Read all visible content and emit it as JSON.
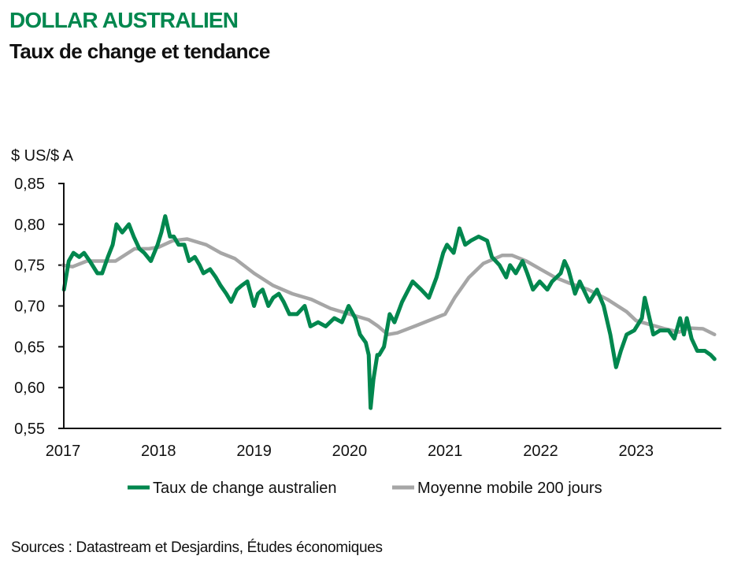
{
  "title": "DOLLAR AUSTRALIEN",
  "subtitle": "Taux de change et tendance",
  "source": "Sources : Datastream et Desjardins, Études économiques",
  "colors": {
    "exchange": "#00874e",
    "ma": "#a6a6a6",
    "title": "#00874e"
  },
  "chart_data": {
    "type": "line",
    "ylabel": "$ US/$ A",
    "xlabel": "",
    "ylim": [
      0.55,
      0.85
    ],
    "xlim": [
      2017,
      2023.9
    ],
    "y_ticks": [
      "0,55",
      "0,60",
      "0,65",
      "0,70",
      "0,75",
      "0,80",
      "0,85"
    ],
    "y_tick_values": [
      0.55,
      0.6,
      0.65,
      0.7,
      0.75,
      0.8,
      0.85
    ],
    "x_ticks": [
      "2017",
      "2018",
      "2019",
      "2020",
      "2021",
      "2022",
      "2023"
    ],
    "x_tick_values": [
      2017,
      2018,
      2019,
      2020,
      2021,
      2022,
      2023
    ],
    "grid": false,
    "legend_position": "bottom",
    "series": [
      {
        "name": "Taux de change australien",
        "color": "#00874e",
        "x": [
          2017.01,
          2017.06,
          2017.11,
          2017.17,
          2017.22,
          2017.28,
          2017.36,
          2017.41,
          2017.47,
          2017.52,
          2017.56,
          2017.62,
          2017.69,
          2017.74,
          2017.8,
          2017.85,
          2017.92,
          2017.99,
          2018.03,
          2018.07,
          2018.12,
          2018.16,
          2018.21,
          2018.27,
          2018.32,
          2018.38,
          2018.43,
          2018.47,
          2018.54,
          2018.6,
          2018.65,
          2018.71,
          2018.76,
          2018.82,
          2018.87,
          2018.93,
          2019.0,
          2019.04,
          2019.09,
          2019.15,
          2019.2,
          2019.26,
          2019.31,
          2019.37,
          2019.45,
          2019.53,
          2019.59,
          2019.67,
          2019.75,
          2019.84,
          2019.92,
          2019.99,
          2020.06,
          2020.11,
          2020.17,
          2020.2,
          2020.22,
          2020.25,
          2020.29,
          2020.31,
          2020.36,
          2020.42,
          2020.47,
          2020.55,
          2020.66,
          2020.75,
          2020.83,
          2020.91,
          2020.98,
          2021.02,
          2021.09,
          2021.15,
          2021.21,
          2021.27,
          2021.35,
          2021.44,
          2021.49,
          2021.57,
          2021.64,
          2021.68,
          2021.74,
          2021.81,
          2021.86,
          2021.92,
          2021.99,
          2022.07,
          2022.12,
          2022.21,
          2022.25,
          2022.29,
          2022.36,
          2022.41,
          2022.51,
          2022.59,
          2022.66,
          2022.73,
          2022.79,
          2022.84,
          2022.9,
          2022.98,
          2023.06,
          2023.09,
          2023.13,
          2023.18,
          2023.25,
          2023.34,
          2023.4,
          2023.46,
          2023.5,
          2023.53,
          2023.58,
          2023.64,
          2023.72,
          2023.78,
          2023.82
        ],
        "values": [
          0.72,
          0.755,
          0.765,
          0.76,
          0.765,
          0.755,
          0.74,
          0.74,
          0.76,
          0.775,
          0.8,
          0.79,
          0.8,
          0.785,
          0.77,
          0.765,
          0.755,
          0.775,
          0.79,
          0.81,
          0.785,
          0.785,
          0.775,
          0.775,
          0.755,
          0.76,
          0.75,
          0.74,
          0.745,
          0.735,
          0.725,
          0.715,
          0.705,
          0.72,
          0.725,
          0.73,
          0.7,
          0.715,
          0.72,
          0.7,
          0.71,
          0.715,
          0.705,
          0.69,
          0.69,
          0.7,
          0.675,
          0.68,
          0.675,
          0.685,
          0.68,
          0.7,
          0.685,
          0.665,
          0.655,
          0.64,
          0.575,
          0.61,
          0.64,
          0.64,
          0.65,
          0.69,
          0.68,
          0.705,
          0.73,
          0.72,
          0.71,
          0.735,
          0.765,
          0.775,
          0.765,
          0.795,
          0.775,
          0.78,
          0.785,
          0.78,
          0.76,
          0.75,
          0.735,
          0.75,
          0.74,
          0.755,
          0.74,
          0.72,
          0.73,
          0.72,
          0.73,
          0.74,
          0.755,
          0.745,
          0.715,
          0.73,
          0.705,
          0.72,
          0.7,
          0.665,
          0.625,
          0.645,
          0.665,
          0.67,
          0.685,
          0.71,
          0.69,
          0.665,
          0.67,
          0.67,
          0.66,
          0.685,
          0.665,
          0.685,
          0.66,
          0.645,
          0.645,
          0.64,
          0.635
        ]
      },
      {
        "name": "Moyenne mobile 200 jours",
        "color": "#a6a6a6",
        "x": [
          2017.0,
          2017.1,
          2017.25,
          2017.4,
          2017.55,
          2017.75,
          2017.9,
          2018.0,
          2018.15,
          2018.3,
          2018.5,
          2018.65,
          2018.8,
          2019.0,
          2019.2,
          2019.4,
          2019.6,
          2019.8,
          2020.0,
          2020.2,
          2020.3,
          2020.4,
          2020.5,
          2020.7,
          2020.85,
          2021.0,
          2021.1,
          2021.25,
          2021.4,
          2021.6,
          2021.7,
          2021.85,
          2022.0,
          2022.15,
          2022.3,
          2022.5,
          2022.7,
          2022.9,
          2023.0,
          2023.15,
          2023.3,
          2023.45,
          2023.55,
          2023.7,
          2023.82
        ],
        "values": [
          0.75,
          0.748,
          0.755,
          0.755,
          0.755,
          0.77,
          0.77,
          0.772,
          0.78,
          0.782,
          0.775,
          0.765,
          0.758,
          0.74,
          0.725,
          0.715,
          0.708,
          0.697,
          0.69,
          0.683,
          0.675,
          0.665,
          0.667,
          0.676,
          0.683,
          0.69,
          0.71,
          0.735,
          0.752,
          0.762,
          0.762,
          0.755,
          0.745,
          0.735,
          0.728,
          0.72,
          0.708,
          0.693,
          0.682,
          0.677,
          0.672,
          0.668,
          0.673,
          0.672,
          0.665
        ]
      }
    ]
  }
}
